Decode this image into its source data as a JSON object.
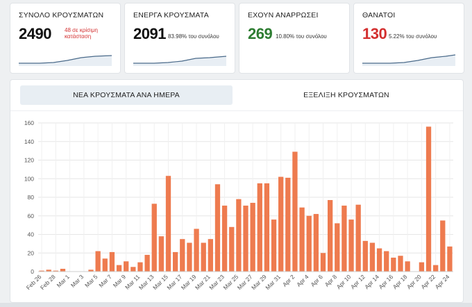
{
  "stats": [
    {
      "title": "ΣΥΝΟΛΟ ΚΡΟΥΣΜΑΤΩΝ",
      "value": "2490",
      "note_line1": "48 σε κρίσιμη",
      "note_line2": "κατάσταση",
      "value_color": "#111111",
      "note_color": "#d32f2f"
    },
    {
      "title": "ΕΝΕΡΓΑ ΚΡΟΥΣΜΑΤΑ",
      "value": "2091",
      "note_line1": "83.98% του συνόλου",
      "note_line2": "",
      "value_color": "#111111",
      "note_color": "#333333"
    },
    {
      "title": "ΕΧΟΥΝ ΑΝΑΡΡΩΣΕΙ",
      "value": "269",
      "note_line1": "10.80% του συνόλου",
      "note_line2": "",
      "value_color": "#2e7d32",
      "note_color": "#333333"
    },
    {
      "title": "ΘΑΝΑΤΟΙ",
      "value": "130",
      "note_line1": "5.22% του συνόλου",
      "note_line2": "",
      "value_color": "#d32f2f",
      "note_color": "#333333"
    }
  ],
  "tabs": {
    "daily": "ΝΕΑ ΚΡΟΥΣΜΑΤΑ ΑΝΑ ΗΜΕΡΑ",
    "evolution": "ΕΞΕΛΙΞΗ ΚΡΟΥΣΜΑΤΩΝ"
  },
  "colors": {
    "bar": "#ee7b4f",
    "sparkline": "#4a6a8a",
    "grid": "#e6e6e6"
  },
  "chart_data": {
    "type": "bar",
    "title": "",
    "xlabel": "",
    "ylabel": "",
    "ylim": [
      0,
      160
    ],
    "yticks": [
      0,
      20,
      40,
      60,
      80,
      100,
      120,
      140,
      160
    ],
    "grid": true,
    "categories": [
      "Feb 26",
      "Feb 27",
      "Feb 28",
      "Feb 29",
      "Mar 1",
      "Mar 2",
      "Mar 3",
      "Mar 4",
      "Mar 5",
      "Mar 6",
      "Mar 7",
      "Mar 8",
      "Mar 9",
      "Mar 10",
      "Mar 11",
      "Mar 12",
      "Mar 13",
      "Mar 14",
      "Mar 15",
      "Mar 16",
      "Mar 17",
      "Mar 18",
      "Mar 19",
      "Mar 20",
      "Mar 21",
      "Mar 22",
      "Mar 23",
      "Mar 24",
      "Mar 25",
      "Mar 26",
      "Mar 27",
      "Mar 28",
      "Mar 29",
      "Mar 30",
      "Mar 31",
      "Apr 1",
      "Apr 2",
      "Apr 3",
      "Apr 4",
      "Apr 5",
      "Apr 6",
      "Apr 7",
      "Apr 8",
      "Apr 9",
      "Apr 10",
      "Apr 11",
      "Apr 12",
      "Apr 13",
      "Apr 14",
      "Apr 15",
      "Apr 16",
      "Apr 17",
      "Apr 18",
      "Apr 19",
      "Apr 20",
      "Apr 21",
      "Apr 22",
      "Apr 23",
      "Apr 24"
    ],
    "tick_labels": [
      "Feb 26",
      "Feb 28",
      "Mar 1",
      "Mar 3",
      "Mar 5",
      "Mar 7",
      "Mar 9",
      "Mar 11",
      "Mar 13",
      "Mar 15",
      "Mar 17",
      "Mar 19",
      "Mar 21",
      "Mar 23",
      "Mar 25",
      "Mar 27",
      "Mar 29",
      "Mar 31",
      "Apr 2",
      "Apr 4",
      "Apr 6",
      "Apr 8",
      "Apr 10",
      "Apr 12",
      "Apr 14",
      "Apr 16",
      "Apr 18",
      "Apr 20",
      "Apr 22",
      "Apr 24"
    ],
    "tick_indices": [
      0,
      2,
      4,
      6,
      8,
      10,
      12,
      14,
      16,
      18,
      20,
      22,
      24,
      26,
      28,
      30,
      32,
      34,
      36,
      38,
      40,
      42,
      44,
      46,
      48,
      50,
      52,
      54,
      56,
      58
    ],
    "values": [
      1,
      2,
      1,
      3,
      0,
      0,
      0,
      2,
      22,
      14,
      21,
      7,
      11,
      5,
      10,
      18,
      73,
      38,
      103,
      21,
      35,
      31,
      46,
      31,
      35,
      94,
      71,
      48,
      78,
      71,
      74,
      95,
      95,
      56,
      102,
      101,
      129,
      69,
      60,
      62,
      20,
      77,
      52,
      71,
      56,
      72,
      33,
      31,
      25,
      22,
      15,
      17,
      11,
      0,
      10,
      156,
      7,
      55,
      27
    ]
  }
}
